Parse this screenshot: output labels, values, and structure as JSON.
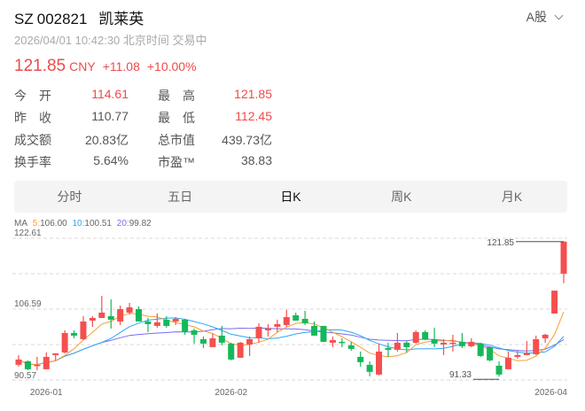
{
  "header": {
    "exchange": "SZ",
    "code": "002821",
    "name": "凯莱英",
    "market": "A股",
    "time": "2026/04/01 10:42:30 北京时间 交易中"
  },
  "quote": {
    "price": "121.85",
    "currency": "CNY",
    "change": "+11.08",
    "change_pct": "+10.00%"
  },
  "stats": [
    {
      "label": "今　开",
      "value": "114.61",
      "red": true
    },
    {
      "label": "最　高",
      "value": "121.85",
      "red": true
    },
    {
      "label": "昨　收",
      "value": "110.77",
      "red": false
    },
    {
      "label": "最　低",
      "value": "112.45",
      "red": true
    },
    {
      "label": "成交额",
      "value": "20.83亿",
      "red": false
    },
    {
      "label": "总市值",
      "value": "439.73亿",
      "red": false
    },
    {
      "label": "换手率",
      "value": "5.64%",
      "red": false
    },
    {
      "label": "市盈™",
      "value": "38.83",
      "red": false
    }
  ],
  "tabs": [
    {
      "label": "分时"
    },
    {
      "label": "五日"
    },
    {
      "label": "日K",
      "active": true
    },
    {
      "label": "周K"
    },
    {
      "label": "月K"
    }
  ],
  "colors": {
    "up": "#f54f4f",
    "down": "#14b85a",
    "ma5": "#f5a033",
    "ma10": "#2aa8f2",
    "ma20": "#7a6cf0",
    "grid": "#d8d8d8"
  },
  "chart_data": {
    "type": "candlestick",
    "ma_legend": {
      "label": "MA",
      "ma5_key": "5:",
      "ma5": "106.00",
      "ma10_key": "10:",
      "ma10": "100.51",
      "ma20_key": "20:",
      "ma20": "99.82"
    },
    "y_ticks": [
      "122.61",
      "106.59",
      "90.57"
    ],
    "ylim": [
      90.57,
      122.61
    ],
    "grid": true,
    "x_ticks": [
      {
        "index": 3,
        "label": "2026-01"
      },
      {
        "index": 23,
        "label": "2026-02"
      },
      {
        "index": 59,
        "label": "2026-04"
      }
    ],
    "max_label": "121.85",
    "min_label": "91.33",
    "ohlc": [
      [
        94.0,
        96.2,
        93.6,
        95.2
      ],
      [
        94.8,
        95.0,
        92.8,
        93.0
      ],
      [
        93.8,
        95.8,
        92.8,
        94.0
      ],
      [
        93.0,
        96.8,
        93.0,
        95.8
      ],
      [
        96.2,
        96.6,
        95.0,
        96.6
      ],
      [
        96.8,
        101.8,
        96.6,
        101.2
      ],
      [
        101.2,
        101.8,
        100.0,
        100.6
      ],
      [
        99.8,
        105.0,
        99.6,
        103.8
      ],
      [
        104.0,
        105.0,
        102.6,
        104.6
      ],
      [
        104.6,
        109.6,
        104.6,
        105.8
      ],
      [
        105.0,
        108.8,
        102.2,
        104.2
      ],
      [
        103.8,
        107.4,
        103.0,
        106.6
      ],
      [
        105.8,
        108.0,
        105.4,
        107.0
      ],
      [
        106.6,
        107.2,
        103.8,
        103.8
      ],
      [
        103.8,
        104.6,
        101.4,
        103.2
      ],
      [
        102.8,
        105.6,
        102.4,
        103.6
      ],
      [
        104.2,
        105.0,
        102.4,
        102.8
      ],
      [
        103.8,
        104.8,
        103.0,
        104.4
      ],
      [
        104.2,
        104.4,
        100.8,
        101.4
      ],
      [
        101.8,
        102.2,
        98.8,
        100.8
      ],
      [
        99.8,
        100.4,
        97.8,
        98.8
      ],
      [
        98.0,
        101.0,
        98.0,
        100.0
      ],
      [
        100.6,
        102.8,
        98.4,
        99.0
      ],
      [
        98.8,
        99.0,
        95.0,
        95.2
      ],
      [
        95.6,
        99.2,
        95.6,
        99.0
      ],
      [
        98.6,
        100.4,
        96.0,
        99.8
      ],
      [
        100.0,
        103.4,
        99.0,
        102.6
      ],
      [
        101.8,
        103.2,
        100.4,
        102.2
      ],
      [
        102.6,
        104.2,
        101.4,
        103.2
      ],
      [
        103.0,
        106.4,
        102.6,
        104.8
      ],
      [
        105.2,
        105.8,
        104.0,
        104.0
      ],
      [
        104.4,
        106.2,
        103.0,
        103.4
      ],
      [
        102.8,
        103.8,
        100.6,
        100.6
      ],
      [
        102.8,
        102.8,
        99.2,
        99.2
      ],
      [
        99.0,
        100.4,
        98.0,
        99.6
      ],
      [
        99.2,
        100.0,
        98.0,
        99.0
      ],
      [
        98.4,
        99.2,
        97.2,
        97.6
      ],
      [
        95.8,
        97.0,
        93.6,
        94.6
      ],
      [
        94.0,
        94.8,
        91.4,
        92.4
      ],
      [
        91.8,
        98.8,
        91.6,
        97.0
      ],
      [
        97.8,
        99.0,
        95.8,
        97.4
      ],
      [
        97.4,
        101.2,
        97.0,
        99.0
      ],
      [
        99.0,
        99.4,
        96.8,
        98.0
      ],
      [
        99.0,
        101.8,
        98.8,
        101.4
      ],
      [
        101.4,
        101.8,
        99.6,
        99.8
      ],
      [
        99.8,
        102.4,
        98.0,
        98.8
      ],
      [
        98.6,
        99.8,
        96.2,
        99.0
      ],
      [
        98.8,
        100.8,
        97.0,
        99.0
      ],
      [
        99.2,
        101.2,
        97.8,
        98.2
      ],
      [
        98.2,
        100.0,
        98.0,
        99.2
      ],
      [
        98.8,
        99.0,
        95.8,
        96.0
      ],
      [
        98.0,
        98.0,
        94.8,
        95.0
      ],
      [
        93.8,
        94.8,
        91.33,
        91.8
      ],
      [
        93.0,
        97.0,
        93.0,
        95.6
      ],
      [
        95.8,
        97.2,
        95.4,
        96.2
      ],
      [
        96.2,
        99.4,
        96.2,
        96.6
      ],
      [
        96.4,
        100.6,
        96.2,
        99.8
      ],
      [
        100.0,
        101.0,
        99.0,
        100.8
      ],
      [
        105.6,
        110.8,
        105.6,
        110.77
      ],
      [
        114.61,
        121.85,
        112.45,
        121.85
      ]
    ]
  }
}
